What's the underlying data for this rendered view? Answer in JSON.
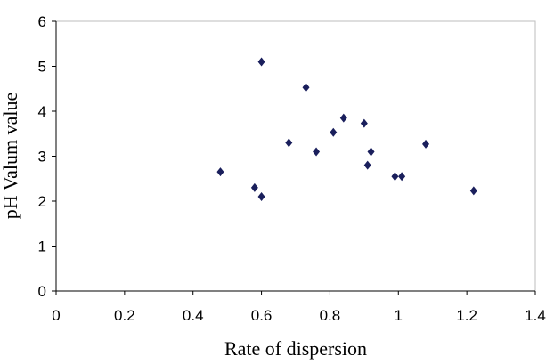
{
  "chart_data": {
    "type": "scatter",
    "title": "",
    "xlabel": "Rate of dispersion",
    "ylabel": "pH Valum value",
    "xlim": [
      0,
      1.4
    ],
    "ylim": [
      0,
      6
    ],
    "x_ticks": [
      "0",
      "0.2",
      "0.4",
      "0.6",
      "0.8",
      "1",
      "1.2",
      "1.4"
    ],
    "y_ticks": [
      "0",
      "1",
      "2",
      "3",
      "4",
      "5",
      "6"
    ],
    "grid": false,
    "legend": "none",
    "marker": "diamond",
    "marker_color": "#1a1f5c",
    "series": [
      {
        "points": [
          {
            "x": 0.48,
            "y": 2.65
          },
          {
            "x": 0.58,
            "y": 2.3
          },
          {
            "x": 0.6,
            "y": 2.1
          },
          {
            "x": 0.6,
            "y": 5.1
          },
          {
            "x": 0.68,
            "y": 3.3
          },
          {
            "x": 0.73,
            "y": 4.53
          },
          {
            "x": 0.76,
            "y": 3.1
          },
          {
            "x": 0.81,
            "y": 3.53
          },
          {
            "x": 0.84,
            "y": 3.85
          },
          {
            "x": 0.9,
            "y": 3.73
          },
          {
            "x": 0.91,
            "y": 2.8
          },
          {
            "x": 0.92,
            "y": 3.1
          },
          {
            "x": 0.99,
            "y": 2.55
          },
          {
            "x": 1.01,
            "y": 2.55
          },
          {
            "x": 1.08,
            "y": 3.27
          },
          {
            "x": 1.22,
            "y": 2.23
          }
        ]
      }
    ]
  }
}
